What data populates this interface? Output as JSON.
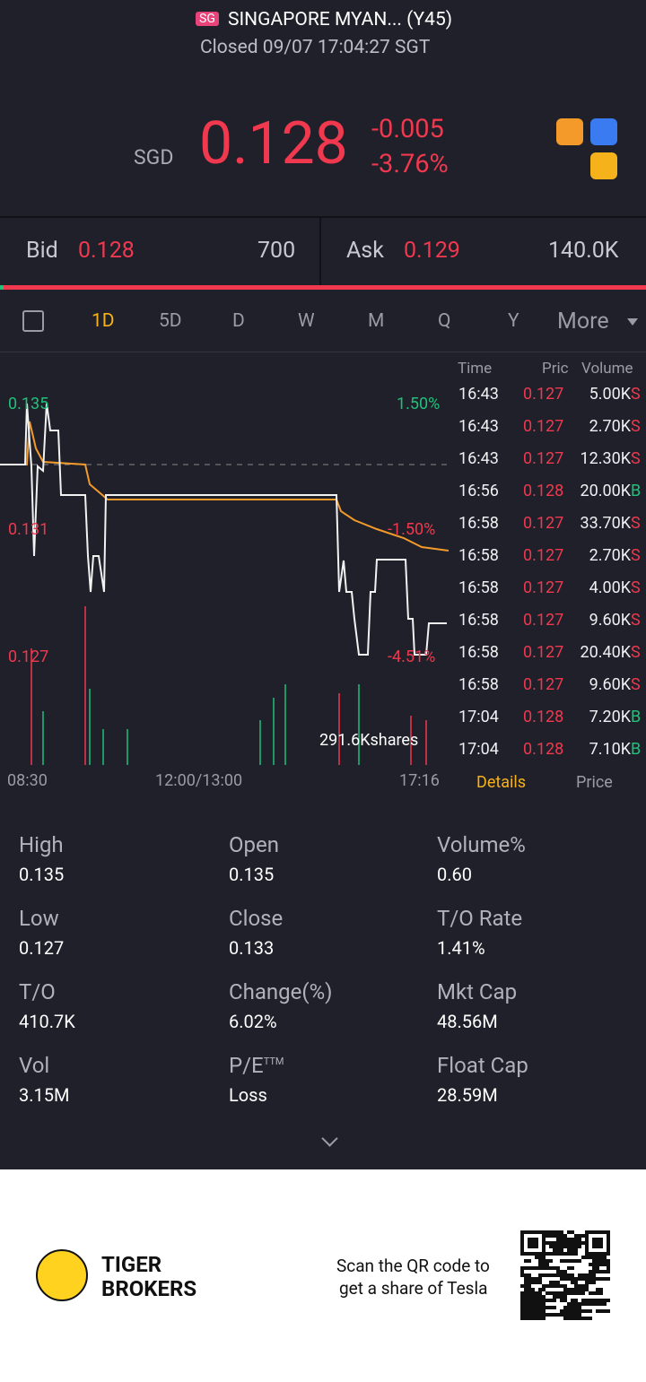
{
  "header": {
    "exchange_badge": "SG",
    "name": "SINGAPORE MYAN... (Y45)",
    "status": "Closed 09/07 17:04:27 SGT"
  },
  "quote": {
    "currency": "SGD",
    "price": "0.128",
    "change": "-0.005",
    "change_pct": "-3.76%"
  },
  "bid_ask": {
    "bid_label": "Bid",
    "bid": "0.128",
    "bid_size": "700",
    "ask_label": "Ask",
    "ask": "0.129",
    "ask_size": "140.0K"
  },
  "tabs": [
    "1D",
    "5D",
    "D",
    "W",
    "M",
    "Q",
    "Y",
    "More"
  ],
  "chart": {
    "price_labels": [
      "0.135",
      "0.131",
      "0.127"
    ],
    "pct_labels": [
      "1.50%",
      "-1.50%",
      "-4.51%"
    ],
    "volume_label": "291.6Kshares",
    "time_labels": [
      "08:30",
      "12:00/13:00",
      "17:16"
    ]
  },
  "trades": {
    "columns": [
      "Time",
      "Pric",
      "Volume"
    ],
    "rows": [
      [
        "16:43",
        "0.127",
        "5.00K",
        "S"
      ],
      [
        "16:43",
        "0.127",
        "2.70K",
        "S"
      ],
      [
        "16:43",
        "0.127",
        "12.30K",
        "S"
      ],
      [
        "16:56",
        "0.128",
        "20.00K",
        "B"
      ],
      [
        "16:58",
        "0.127",
        "33.70K",
        "S"
      ],
      [
        "16:58",
        "0.127",
        "2.70K",
        "S"
      ],
      [
        "16:58",
        "0.127",
        "4.00K",
        "S"
      ],
      [
        "16:58",
        "0.127",
        "9.60K",
        "S"
      ],
      [
        "16:58",
        "0.127",
        "20.40K",
        "S"
      ],
      [
        "16:58",
        "0.127",
        "9.60K",
        "S"
      ],
      [
        "17:04",
        "0.128",
        "7.20K",
        "B"
      ],
      [
        "17:04",
        "0.128",
        "7.10K",
        "B"
      ]
    ],
    "tabs": [
      "Details",
      "Price"
    ]
  },
  "stats": [
    {
      "label": "High",
      "value": "0.135"
    },
    {
      "label": "Open",
      "value": "0.135"
    },
    {
      "label": "Volume%",
      "value": "0.60"
    },
    {
      "label": "Low",
      "value": "0.127"
    },
    {
      "label": "Close",
      "value": "0.133"
    },
    {
      "label": "T/O Rate",
      "value": "1.41%"
    },
    {
      "label": "T/O",
      "value": "410.7K"
    },
    {
      "label": "Change(%)",
      "value": "6.02%"
    },
    {
      "label": "Mkt Cap",
      "value": "48.56M"
    },
    {
      "label": "Vol",
      "value": "3.15M"
    },
    {
      "label": "P/E",
      "sup": "TTM",
      "value": "Loss"
    },
    {
      "label": "Float Cap",
      "value": "28.59M"
    }
  ],
  "footer": {
    "brand_line1": "TIGER",
    "brand_line2": "BROKERS",
    "promo_line1": "Scan the QR code to",
    "promo_line2": "get a share of Tesla"
  }
}
